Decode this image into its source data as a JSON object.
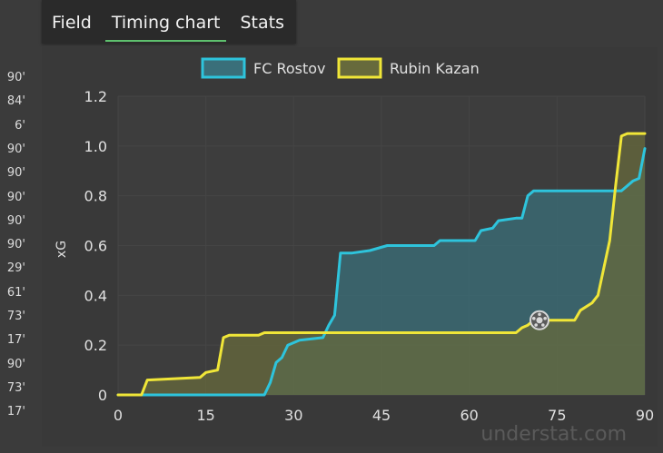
{
  "tabs": [
    {
      "label": "Field",
      "active": false
    },
    {
      "label": "Timing chart",
      "active": true
    },
    {
      "label": "Stats",
      "active": false
    }
  ],
  "minute_list": [
    "90'",
    "84'",
    "6'",
    "90'",
    "90'",
    "90'",
    "90'",
    "90'",
    "29'",
    "61'",
    "73'",
    "17'",
    "90'",
    "73'",
    "17'"
  ],
  "watermark": "understat.com",
  "colors": {
    "team1": "#2ec4dc",
    "team2": "#f0e638",
    "team1_fill": "#3a6f7a",
    "team2_fill": "#676a3c",
    "grid": "#454545",
    "axis": "#e0e0e0"
  },
  "chart_data": {
    "type": "line",
    "ylabel": "xG",
    "xlim": [
      0,
      90
    ],
    "ylim": [
      0,
      1.2
    ],
    "x_ticks": [
      0,
      15,
      30,
      45,
      60,
      75,
      90
    ],
    "y_ticks": [
      0,
      0.2,
      0.4,
      0.6,
      0.8,
      1.0,
      1.2
    ],
    "y_tick_labels": [
      "0",
      "0.2",
      "0.4",
      "0.6",
      "0.8",
      "1.0",
      "1.2"
    ],
    "legend_position": "top-center",
    "series": [
      {
        "name": "FC Rostov",
        "color": "#2ec4dc",
        "points": [
          [
            0,
            0
          ],
          [
            25,
            0
          ],
          [
            26,
            0.05
          ],
          [
            27,
            0.13
          ],
          [
            28,
            0.15
          ],
          [
            29,
            0.2
          ],
          [
            31,
            0.22
          ],
          [
            35,
            0.23
          ],
          [
            36,
            0.28
          ],
          [
            37,
            0.32
          ],
          [
            38,
            0.57
          ],
          [
            40,
            0.57
          ],
          [
            43,
            0.58
          ],
          [
            46,
            0.6
          ],
          [
            54,
            0.6
          ],
          [
            55,
            0.62
          ],
          [
            61,
            0.62
          ],
          [
            62,
            0.66
          ],
          [
            64,
            0.67
          ],
          [
            65,
            0.7
          ],
          [
            68,
            0.71
          ],
          [
            69,
            0.71
          ],
          [
            70,
            0.8
          ],
          [
            71,
            0.82
          ],
          [
            86,
            0.82
          ],
          [
            87,
            0.84
          ],
          [
            88,
            0.86
          ],
          [
            89,
            0.87
          ],
          [
            90,
            0.99
          ]
        ]
      },
      {
        "name": "Rubin Kazan",
        "color": "#f0e638",
        "points": [
          [
            0,
            0
          ],
          [
            4,
            0
          ],
          [
            5,
            0.06
          ],
          [
            14,
            0.07
          ],
          [
            15,
            0.09
          ],
          [
            17,
            0.1
          ],
          [
            18,
            0.23
          ],
          [
            19,
            0.24
          ],
          [
            24,
            0.24
          ],
          [
            25,
            0.25
          ],
          [
            68,
            0.25
          ],
          [
            69,
            0.27
          ],
          [
            70,
            0.28
          ],
          [
            71,
            0.3
          ],
          [
            78,
            0.3
          ],
          [
            79,
            0.34
          ],
          [
            81,
            0.37
          ],
          [
            82,
            0.4
          ],
          [
            84,
            0.62
          ],
          [
            85,
            0.84
          ],
          [
            86,
            1.04
          ],
          [
            87,
            1.05
          ],
          [
            90,
            1.05
          ]
        ]
      }
    ],
    "annotations": [
      {
        "type": "ball-marker",
        "x": 72,
        "y": 0.3
      }
    ]
  }
}
